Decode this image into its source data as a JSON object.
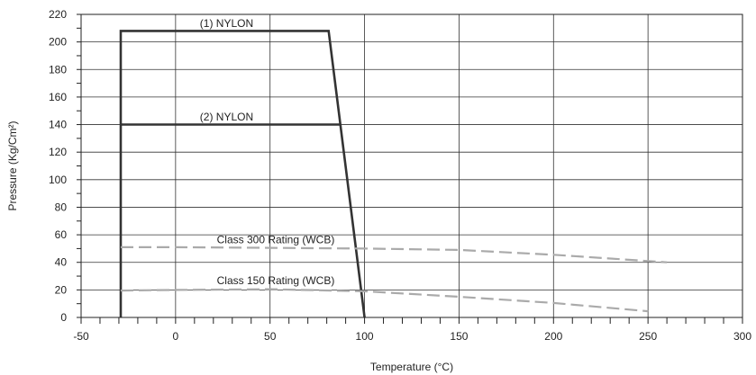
{
  "chart_data": {
    "type": "line",
    "title": "",
    "xlabel": "Temperature (°C)",
    "ylabel": "Pressure (Kg/Cm²)",
    "xlim": [
      -50,
      300
    ],
    "ylim": [
      0,
      220
    ],
    "x_ticks": [
      -50,
      0,
      50,
      100,
      150,
      200,
      250,
      300
    ],
    "y_ticks": [
      0,
      20,
      40,
      60,
      80,
      100,
      120,
      140,
      160,
      180,
      200,
      220
    ],
    "grid": true,
    "series": [
      {
        "name": "(1) NYLON",
        "color": "#333333",
        "style": "solid",
        "points": [
          [
            -29,
            0
          ],
          [
            -29,
            208
          ],
          [
            81,
            208
          ],
          [
            100,
            0
          ]
        ]
      },
      {
        "name": "(2) NYLON",
        "color": "#333333",
        "style": "solid",
        "points": [
          [
            -29,
            140
          ],
          [
            87,
            140
          ]
        ]
      },
      {
        "name": "Class 300 Rating (WCB)",
        "color": "#aaaaaa",
        "style": "dashed",
        "points": [
          [
            -29,
            51
          ],
          [
            0,
            51
          ],
          [
            50,
            50.5
          ],
          [
            100,
            50
          ],
          [
            150,
            49
          ],
          [
            200,
            45.5
          ],
          [
            260,
            40
          ]
        ]
      },
      {
        "name": "Class 150 Rating (WCB)",
        "color": "#aaaaaa",
        "style": "dashed",
        "points": [
          [
            -29,
            19.5
          ],
          [
            0,
            20
          ],
          [
            50,
            20.5
          ],
          [
            100,
            19
          ],
          [
            150,
            15
          ],
          [
            200,
            10.5
          ],
          [
            250,
            4.5
          ]
        ]
      }
    ],
    "annotations": [
      {
        "text": "(1) NYLON",
        "x": 27,
        "y": 211
      },
      {
        "text": "(2) NYLON",
        "x": 27,
        "y": 143
      },
      {
        "text": "Class 300 Rating (WCB)",
        "x": 53,
        "y": 54
      },
      {
        "text": "Class 150 Rating (WCB)",
        "x": 53,
        "y": 24
      }
    ]
  }
}
